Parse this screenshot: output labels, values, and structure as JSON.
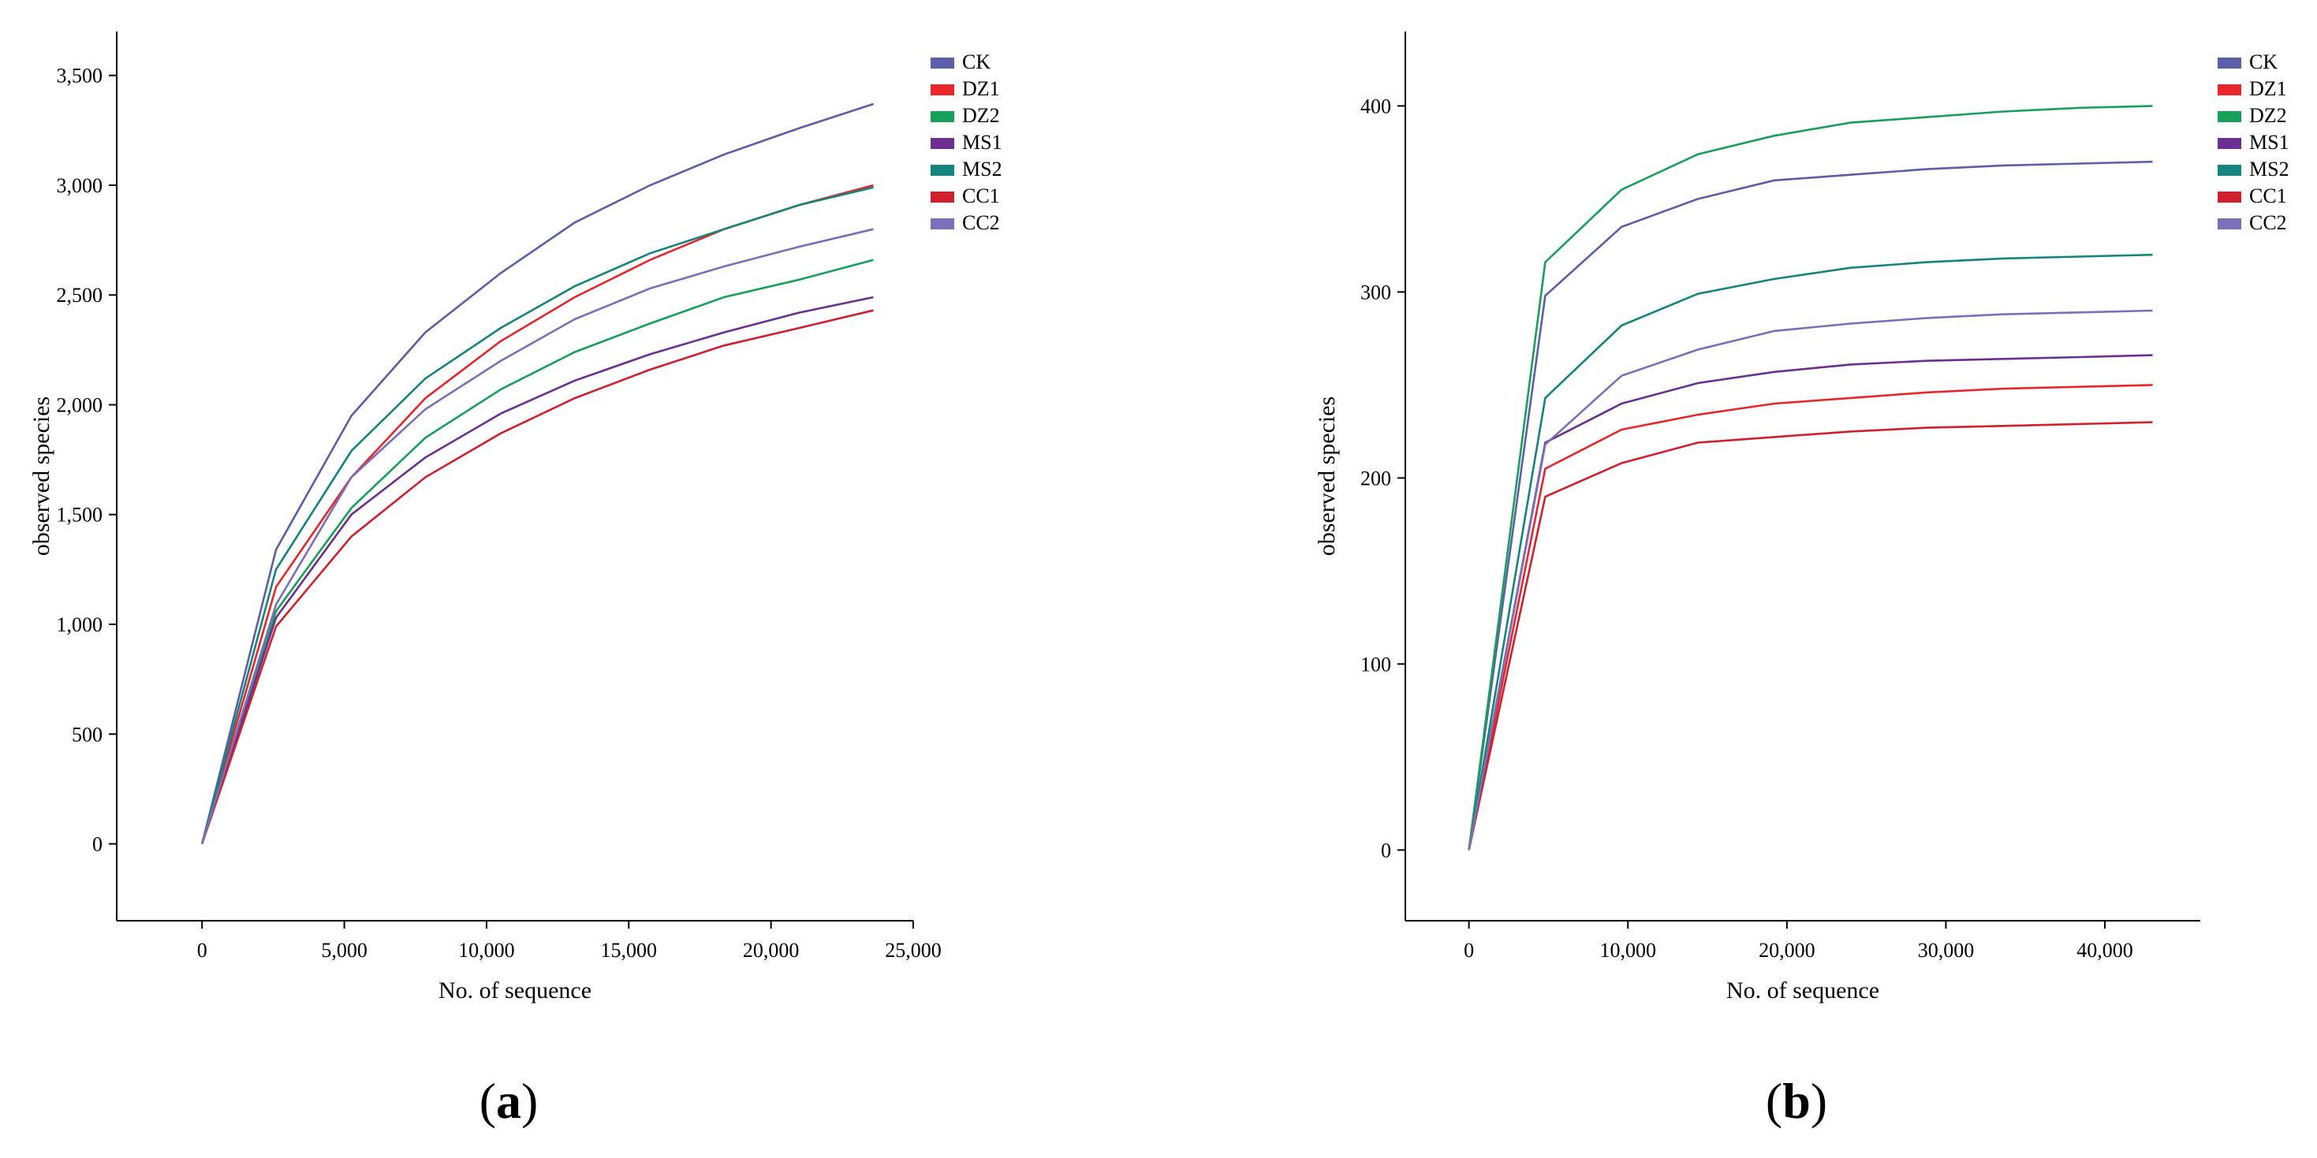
{
  "chart_data": [
    {
      "type": "line",
      "panel_label": {
        "open": "(",
        "letter": "a",
        "close": ")"
      },
      "xlabel": "No. of sequence",
      "ylabel": "observed species",
      "xlim": [
        -3000,
        25000
      ],
      "ylim": [
        -350,
        3700
      ],
      "xticks": [
        0,
        5000,
        10000,
        15000,
        20000,
        25000
      ],
      "xtick_labels": [
        "0",
        "5,000",
        "10,000",
        "15,000",
        "20,000",
        "25,000"
      ],
      "yticks": [
        0,
        500,
        1000,
        1500,
        2000,
        2500,
        3000,
        3500
      ],
      "ytick_labels": [
        "0",
        "500",
        "1,000",
        "1,500",
        "2,000",
        "2,500",
        "3,000",
        "3,500"
      ],
      "legend_position": "top-right",
      "x": [
        0,
        2600,
        5250,
        7850,
        10500,
        13100,
        15750,
        18350,
        21000,
        23600
      ],
      "series": [
        {
          "name": "CK",
          "color": "#5b5ea8",
          "values": [
            0,
            1340,
            1950,
            2330,
            2600,
            2830,
            3000,
            3140,
            3260,
            3370
          ]
        },
        {
          "name": "DZ1",
          "color": "#e8262a",
          "values": [
            0,
            1170,
            1670,
            2030,
            2290,
            2490,
            2660,
            2800,
            2910,
            3000
          ]
        },
        {
          "name": "DZ2",
          "color": "#16a05a",
          "values": [
            0,
            1060,
            1530,
            1850,
            2070,
            2240,
            2370,
            2490,
            2570,
            2660
          ]
        },
        {
          "name": "MS1",
          "color": "#6b2f91",
          "values": [
            0,
            1030,
            1500,
            1760,
            1960,
            2110,
            2230,
            2330,
            2420,
            2490
          ]
        },
        {
          "name": "MS2",
          "color": "#14847e",
          "values": [
            0,
            1250,
            1790,
            2120,
            2350,
            2540,
            2690,
            2800,
            2910,
            2990
          ]
        },
        {
          "name": "CC1",
          "color": "#d0202e",
          "values": [
            0,
            990,
            1400,
            1670,
            1870,
            2030,
            2160,
            2270,
            2350,
            2430
          ]
        },
        {
          "name": "CC2",
          "color": "#7a6fb8",
          "values": [
            0,
            1090,
            1670,
            1980,
            2200,
            2390,
            2530,
            2630,
            2720,
            2800
          ]
        }
      ]
    },
    {
      "type": "line",
      "panel_label": {
        "open": "(",
        "letter": "b",
        "close": ")"
      },
      "xlabel": "No. of sequence",
      "ylabel": "observed species",
      "xlim": [
        -4000,
        46000
      ],
      "ylim": [
        -38,
        440
      ],
      "xticks": [
        0,
        10000,
        20000,
        30000,
        40000
      ],
      "xtick_labels": [
        "0",
        "10,000",
        "20,000",
        "30,000",
        "40,000"
      ],
      "yticks": [
        0,
        100,
        200,
        300,
        400
      ],
      "ytick_labels": [
        "0",
        "100",
        "200",
        "300",
        "400"
      ],
      "legend_position": "top-right",
      "x": [
        0,
        4800,
        9600,
        14400,
        19200,
        24000,
        28800,
        33600,
        38400,
        43000
      ],
      "series": [
        {
          "name": "CK",
          "color": "#5b5ea8",
          "values": [
            0,
            298,
            335,
            350,
            360,
            363,
            366,
            368,
            369,
            370
          ]
        },
        {
          "name": "DZ1",
          "color": "#e8262a",
          "values": [
            0,
            205,
            226,
            234,
            240,
            243,
            246,
            248,
            249,
            250
          ]
        },
        {
          "name": "DZ2",
          "color": "#16a05a",
          "values": [
            0,
            316,
            355,
            374,
            384,
            391,
            394,
            397,
            399,
            400
          ]
        },
        {
          "name": "MS1",
          "color": "#6b2f91",
          "values": [
            0,
            219,
            240,
            251,
            257,
            261,
            263,
            264,
            265,
            266
          ]
        },
        {
          "name": "MS2",
          "color": "#14847e",
          "values": [
            0,
            243,
            282,
            299,
            307,
            313,
            316,
            318,
            319,
            320
          ]
        },
        {
          "name": "CC1",
          "color": "#d0202e",
          "values": [
            0,
            190,
            208,
            219,
            222,
            225,
            227,
            228,
            229,
            230
          ]
        },
        {
          "name": "CC2",
          "color": "#7a6fb8",
          "values": [
            0,
            218,
            255,
            269,
            279,
            283,
            286,
            288,
            289,
            290
          ]
        }
      ]
    }
  ]
}
